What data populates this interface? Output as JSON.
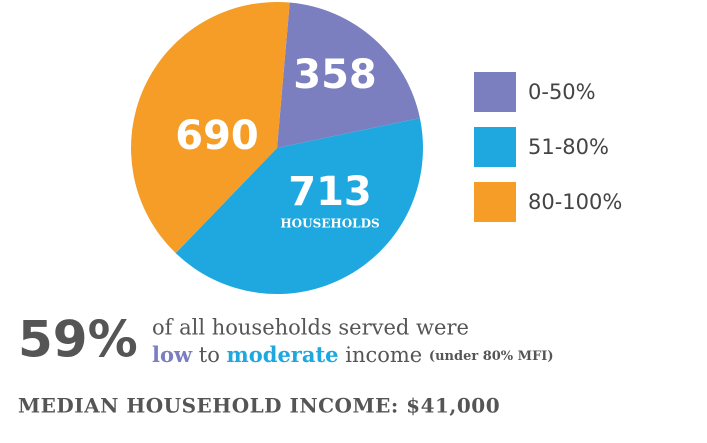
{
  "chart_data": {
    "type": "pie",
    "categories": [
      "0-50%",
      "51-80%",
      "80-100%"
    ],
    "values": [
      358,
      713,
      690
    ],
    "colors": [
      "#7b7fc0",
      "#1fa8e0",
      "#f59d26"
    ],
    "annotation": "HOUSEHOLDS",
    "legend": "right"
  },
  "summary": {
    "big": "59%",
    "line1": "of all households served were",
    "low": "low",
    "to": "to",
    "moderate": "moderate",
    "income": "income",
    "note": "(under 80% MFI)",
    "median": "MEDIAN HOUSEHOLD INCOME: $41,000"
  }
}
